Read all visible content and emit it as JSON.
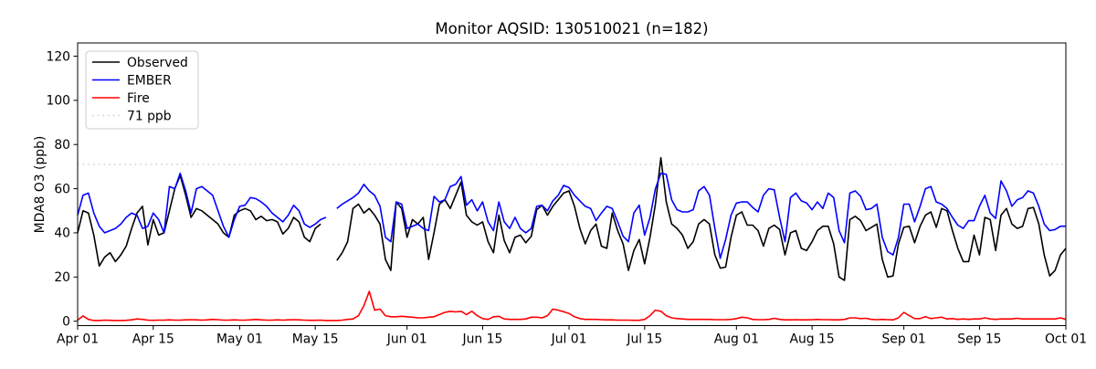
{
  "chart_data": {
    "type": "line",
    "title": "Monitor AQSID: 130510021 (n=182)",
    "ylabel": "MDA8 O3 (ppb)",
    "xlabel": "",
    "ylim": [
      -2,
      126
    ],
    "yticks": [
      0,
      20,
      40,
      60,
      80,
      100,
      120
    ],
    "x_total_days": 183,
    "x_start_label": "Apr 01",
    "x_end_label": "Oct 01",
    "grid": false,
    "legend_position": "upper left",
    "xticks": [
      {
        "label": "Apr 01",
        "day": 0
      },
      {
        "label": "Apr 15",
        "day": 14
      },
      {
        "label": "May 01",
        "day": 30
      },
      {
        "label": "May 15",
        "day": 44
      },
      {
        "label": "Jun 01",
        "day": 61
      },
      {
        "label": "Jun 15",
        "day": 75
      },
      {
        "label": "Jul 01",
        "day": 91
      },
      {
        "label": "Jul 15",
        "day": 105
      },
      {
        "label": "Aug 01",
        "day": 122
      },
      {
        "label": "Aug 15",
        "day": 136
      },
      {
        "label": "Sep 01",
        "day": 153
      },
      {
        "label": "Sep 15",
        "day": 167
      },
      {
        "label": "Oct 01",
        "day": 183
      }
    ],
    "threshold": {
      "value": 71,
      "label": "71 ppb",
      "color": "#cccccc",
      "dash": "dotted"
    },
    "legend": [
      {
        "label": "Observed",
        "color": "#000000",
        "dash": "solid"
      },
      {
        "label": "EMBER",
        "color": "#0000ff",
        "dash": "solid"
      },
      {
        "label": "Fire",
        "color": "#ff0000",
        "dash": "solid"
      },
      {
        "label": "71 ppb",
        "color": "#cccccc",
        "dash": "dotted"
      }
    ],
    "series": [
      {
        "name": "Observed",
        "color": "#000000",
        "width": 1.6,
        "values": [
          40,
          50,
          49,
          39,
          25,
          29,
          31,
          27,
          30,
          34,
          42,
          49,
          52,
          34.5,
          46,
          39,
          40,
          50,
          60,
          66,
          57,
          47,
          51,
          50,
          48,
          46,
          44,
          40,
          38,
          48,
          50,
          51,
          50,
          46,
          47.5,
          45.5,
          46,
          45,
          39.5,
          42,
          47,
          45,
          38,
          36,
          42,
          44,
          null,
          null,
          27.5,
          31,
          36,
          51,
          53,
          49,
          51,
          48,
          44,
          28,
          23,
          54,
          51,
          38,
          46,
          44,
          47,
          28,
          40,
          53,
          55,
          51,
          57,
          63,
          48,
          45,
          43.5,
          45,
          36,
          31,
          48,
          36.5,
          31,
          38,
          39,
          35.5,
          38.5,
          50.5,
          52.5,
          48,
          52,
          55,
          58,
          59,
          52,
          42,
          35,
          41,
          44,
          34,
          33,
          49,
          41,
          35,
          23,
          32,
          37,
          26,
          38,
          53,
          74,
          54,
          44,
          42,
          39,
          33,
          36,
          44,
          46,
          44,
          30,
          24,
          24.5,
          38,
          48,
          49.5,
          43.5,
          43.5,
          41,
          34,
          42,
          43.5,
          41.5,
          30,
          40,
          41,
          33,
          32,
          36,
          41,
          43,
          43,
          35,
          20,
          18.5,
          46,
          47.5,
          45.5,
          41,
          42.5,
          44,
          28,
          20,
          20.5,
          35,
          42.5,
          43,
          35.5,
          43,
          48,
          49.5,
          42.5,
          51,
          50,
          41,
          33,
          27,
          27,
          39,
          30,
          47,
          46,
          32,
          48,
          51,
          44,
          42,
          43,
          51,
          51.5,
          44,
          30,
          20.5,
          23,
          30,
          33
        ]
      },
      {
        "name": "EMBER",
        "color": "#0000ff",
        "width": 1.6,
        "values": [
          48,
          57,
          58,
          49,
          43,
          40,
          41,
          42,
          44,
          47,
          49,
          48,
          42,
          43,
          49,
          46,
          40,
          61,
          60,
          67,
          59,
          49,
          60,
          61,
          59,
          57,
          50,
          43,
          38,
          46,
          52,
          52.5,
          56,
          55.5,
          54,
          52,
          49,
          47,
          45,
          48,
          52.5,
          50,
          44,
          42.5,
          44,
          46,
          47,
          null,
          51,
          53,
          54.5,
          56,
          58,
          62,
          59,
          57,
          52,
          38,
          36,
          54,
          53,
          42,
          43,
          44,
          42,
          41,
          56.5,
          54,
          55,
          61,
          62,
          65.5,
          52.5,
          55,
          50,
          54,
          45,
          41,
          54,
          45,
          42,
          47,
          42,
          40,
          42,
          52,
          52.5,
          50,
          54.5,
          57,
          61.5,
          60.5,
          57,
          54.5,
          52,
          51,
          45.5,
          49,
          52,
          51,
          45,
          38.5,
          36,
          49,
          52.5,
          39,
          47,
          60,
          67,
          66.5,
          55,
          50.5,
          49.5,
          49.5,
          50.5,
          59,
          61,
          57,
          42,
          28.5,
          37,
          48,
          53.5,
          54,
          54,
          51.5,
          49.5,
          57,
          60,
          59.5,
          47,
          36,
          56,
          58,
          54.5,
          53.5,
          50.5,
          54,
          51,
          58,
          56,
          41,
          35.5,
          58,
          59,
          56.5,
          50.5,
          51,
          53,
          38,
          31.5,
          30,
          38,
          53,
          53,
          45,
          52,
          60,
          61,
          54,
          53,
          51,
          47,
          43.5,
          42,
          45.5,
          45.5,
          52,
          57,
          49,
          46.5,
          63.5,
          59,
          52,
          55,
          56,
          59,
          58,
          52,
          44,
          41,
          41.5,
          43,
          43
        ]
      },
      {
        "name": "Fire",
        "color": "#ff0000",
        "width": 1.6,
        "values": [
          0.5,
          2.4,
          0.8,
          0.3,
          0.3,
          0.5,
          0.4,
          0.3,
          0.3,
          0.4,
          0.6,
          1,
          0.8,
          0.5,
          0.4,
          0.5,
          0.5,
          0.6,
          0.5,
          0.5,
          0.6,
          0.7,
          0.6,
          0.5,
          0.6,
          0.8,
          0.7,
          0.5,
          0.5,
          0.6,
          0.5,
          0.5,
          0.6,
          0.8,
          0.6,
          0.5,
          0.5,
          0.6,
          0.5,
          0.6,
          0.7,
          0.6,
          0.5,
          0.4,
          0.4,
          0.5,
          0.3,
          0.3,
          0.3,
          0.5,
          0.8,
          1,
          2.5,
          7,
          13.5,
          5,
          5.5,
          2.5,
          2,
          2,
          2.2,
          2,
          1.8,
          1.5,
          1.5,
          1.8,
          2,
          3,
          4,
          4.5,
          4.2,
          4.5,
          3,
          4.5,
          2.5,
          1.2,
          0.8,
          2,
          2.2,
          1,
          0.8,
          0.8,
          0.8,
          1,
          1.8,
          1.8,
          1.5,
          2.5,
          5.5,
          5,
          4.3,
          3.5,
          2,
          1.2,
          0.8,
          0.8,
          0.8,
          0.7,
          0.6,
          0.6,
          0.5,
          0.5,
          0.5,
          0.4,
          0.4,
          0.8,
          2.5,
          5,
          4.5,
          2.5,
          1.5,
          1.2,
          1,
          0.8,
          0.8,
          0.8,
          0.8,
          0.8,
          0.7,
          0.7,
          0.7,
          0.8,
          1.2,
          1.8,
          1.5,
          0.8,
          0.7,
          0.7,
          0.8,
          1.3,
          0.8,
          0.6,
          0.6,
          0.7,
          0.6,
          0.6,
          0.7,
          0.8,
          0.7,
          0.7,
          0.6,
          0.6,
          0.8,
          1.5,
          1.5,
          1.2,
          1.3,
          0.8,
          0.7,
          0.8,
          0.7,
          0.6,
          1.5,
          4,
          2.5,
          1.2,
          1.2,
          2,
          1.2,
          1.5,
          1.8,
          1,
          1.2,
          0.8,
          1,
          0.8,
          1,
          1,
          1.5,
          1,
          0.8,
          1,
          1,
          1,
          1.3,
          1,
          1,
          1,
          1,
          1,
          1,
          1,
          1.5,
          0.8
        ]
      }
    ]
  }
}
